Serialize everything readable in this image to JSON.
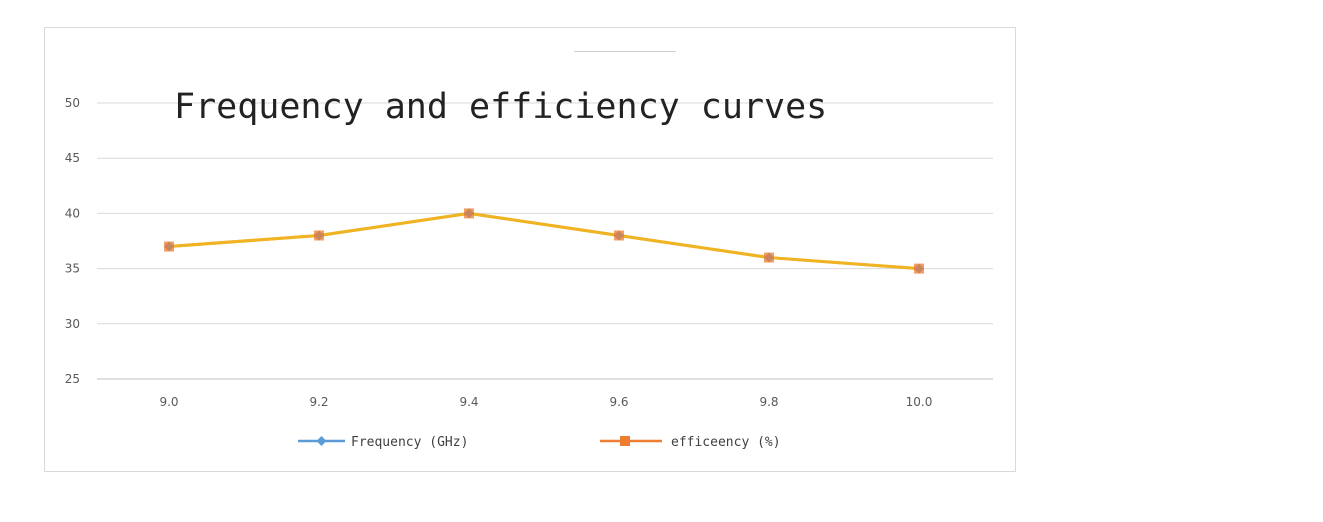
{
  "chart_data": {
    "type": "line",
    "title": "Frequency and efficiency curves",
    "categories": [
      "9.0",
      "9.2",
      "9.4",
      "9.6",
      "9.8",
      "10.0"
    ],
    "series": [
      {
        "name": "Frequency (GHz)",
        "color": "#5b9bd5",
        "marker": "diamond",
        "values": [
          37,
          38,
          40,
          38,
          36,
          35
        ]
      },
      {
        "name": "efficeency (%)",
        "color": "#ed7d31",
        "marker": "square",
        "values": [
          37,
          38,
          40,
          38,
          36,
          35
        ]
      }
    ],
    "line_color": "#f0b323",
    "ylim": [
      25,
      50
    ],
    "yticks": [
      "25",
      "30",
      "35",
      "40",
      "45",
      "50"
    ],
    "grid": true,
    "legend_position": "bottom"
  }
}
